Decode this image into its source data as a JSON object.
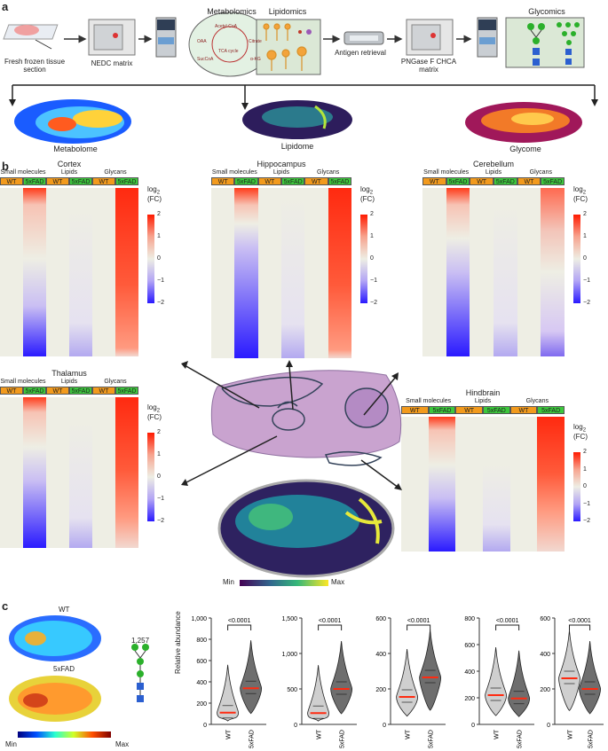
{
  "panels": {
    "a": "a",
    "b": "b",
    "c": "c"
  },
  "workflow": {
    "fresh_frozen": "Fresh frozen tissue section",
    "nedc": "NEDC matrix",
    "metabolomics": "Metabolomics",
    "lipidomics": "Lipidomics",
    "antigen": "Antigen retrieval",
    "pngase": "PNGase F CHCA matrix",
    "glycomics": "Glycomics",
    "tca": {
      "acetyl": "Acetyl-CoA",
      "oaa": "OAA",
      "citrate": "Citrate",
      "cycle": "TCA cycle",
      "succoa": "SucCoA",
      "akg": "α-KG"
    }
  },
  "maps": {
    "metabolome": "Metabolome",
    "lipidome": "Lipidome",
    "glycome": "Glycome"
  },
  "heatmaps": {
    "col_titles": {
      "small": "Small molecules",
      "lipids": "Lipids",
      "glycans": "Glycans"
    },
    "wt": "WT",
    "fad": "5xFAD",
    "regions": {
      "cortex": "Cortex",
      "hippocampus": "Hippocampus",
      "cerebellum": "Cerebellum",
      "thalamus": "Thalamus",
      "hindbrain": "Hindbrain"
    },
    "colorbar": {
      "title1": "log",
      "sub": "2",
      "title2": "(FC)",
      "ticks": [
        "2",
        "1",
        "0",
        "−1",
        "−2"
      ]
    }
  },
  "center": {
    "min": "Min",
    "max": "Max"
  },
  "panel_c": {
    "wt_label": "WT",
    "fad_label": "5xFAD",
    "glycan_id": "1,257",
    "min": "Min",
    "max": "Max",
    "ylabel": "Relative abundance"
  },
  "chart_data": [
    {
      "type": "violin",
      "categories": [
        "WT",
        "5xFAD"
      ],
      "ylim": [
        0,
        1000
      ],
      "yticks": [
        "0",
        "200",
        "400",
        "600",
        "800",
        "1,000"
      ],
      "medians": [
        110,
        340
      ],
      "annotation": "<0.0001",
      "ylabel": "Relative abundance"
    },
    {
      "type": "violin",
      "categories": [
        "WT",
        "5xFAD"
      ],
      "ylim": [
        0,
        1500
      ],
      "yticks": [
        "0",
        "500",
        "1,000",
        "1,500"
      ],
      "medians": [
        160,
        500
      ],
      "annotation": "<0.0001"
    },
    {
      "type": "violin",
      "categories": [
        "WT",
        "5xFAD"
      ],
      "ylim": [
        0,
        600
      ],
      "yticks": [
        "0",
        "200",
        "400",
        "600"
      ],
      "medians": [
        155,
        265
      ],
      "annotation": "<0.0001"
    },
    {
      "type": "violin",
      "categories": [
        "WT",
        "5xFAD"
      ],
      "ylim": [
        0,
        800
      ],
      "yticks": [
        "0",
        "200",
        "400",
        "600",
        "800"
      ],
      "medians": [
        220,
        195
      ],
      "annotation": "<0.0001"
    },
    {
      "type": "violin",
      "categories": [
        "WT",
        "5xFAD"
      ],
      "ylim": [
        0,
        600
      ],
      "yticks": [
        "0",
        "200",
        "400",
        "600"
      ],
      "medians": [
        260,
        200
      ],
      "annotation": "<0.0001"
    }
  ],
  "colors": {
    "wt_tag": "#f29a1d",
    "fad_tag": "#3cc83c",
    "fc_pos": "#ff1a00",
    "fc_neg": "#2a1aff",
    "neutral": "#eeeee4"
  }
}
